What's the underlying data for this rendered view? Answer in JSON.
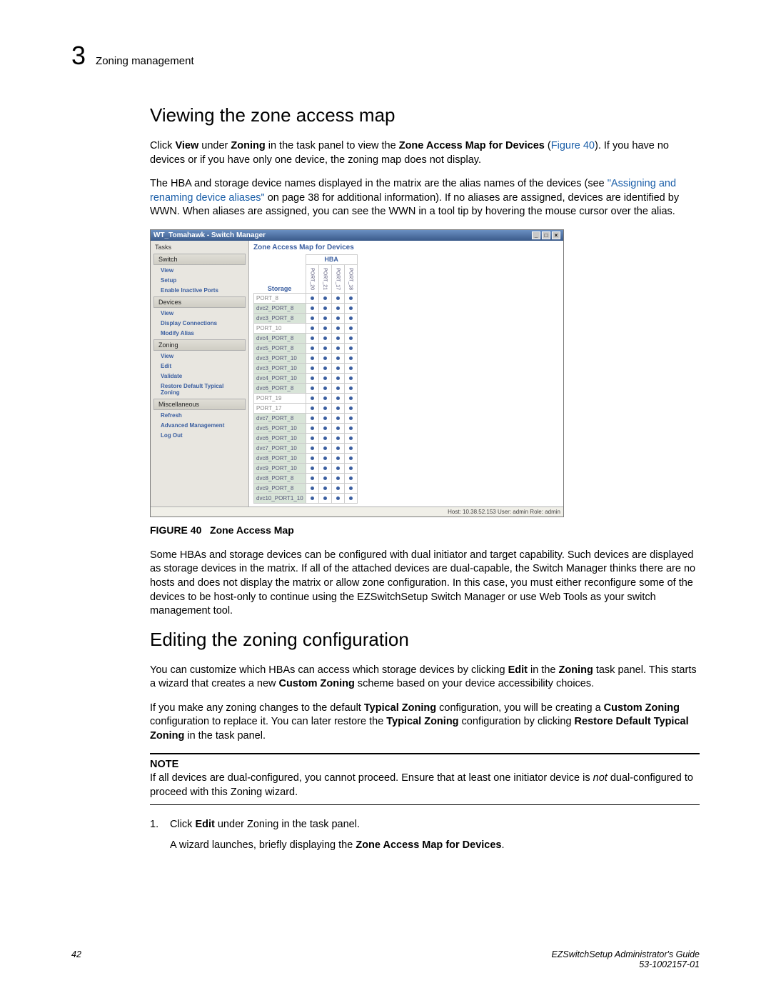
{
  "header": {
    "chapter_number": "3",
    "chapter_title": "Zoning management"
  },
  "section1": {
    "heading": "Viewing the zone access map",
    "p1_a": "Click ",
    "p1_b": "View",
    "p1_c": " under ",
    "p1_d": "Zoning",
    "p1_e": " in the task panel to view the ",
    "p1_f": "Zone Access Map for Devices",
    "p1_g": " (",
    "p1_link": "Figure 40",
    "p1_h": "). If you have no devices or if you have only one device, the zoning map does not display.",
    "p2_a": "The HBA and storage device names displayed in the matrix are the alias names of the devices (see ",
    "p2_link": "\"Assigning and renaming device aliases\"",
    "p2_b": " on page 38 for additional information). If no aliases are assigned, devices are identified by WWN. When aliases are assigned, you can see the WWN in a tool tip by hovering the mouse cursor over the alias."
  },
  "app": {
    "title": "WT_Tomahawk - Switch Manager",
    "tasks_label": "Tasks",
    "groups": {
      "switch": "Switch",
      "devices": "Devices",
      "zoning": "Zoning",
      "misc": "Miscellaneous"
    },
    "switch_links": [
      "View",
      "Setup",
      "Enable Inactive Ports"
    ],
    "devices_links": [
      "View",
      "Display Connections",
      "Modify Alias"
    ],
    "zoning_links": [
      "View",
      "Edit",
      "Validate",
      "Restore Default Typical Zoning"
    ],
    "misc_links": [
      "Refresh",
      "Advanced Management",
      "Log Out"
    ],
    "map_title": "Zone Access Map for Devices",
    "hba_label": "HBA",
    "storage_label": "Storage",
    "col_headers": [
      "PORT_20",
      "PORT_21",
      "PORT_17",
      "PORT_18"
    ],
    "rows": [
      {
        "label": "PORT_8",
        "alt": false
      },
      {
        "label": "dvc2_PORT_8",
        "alt": true
      },
      {
        "label": "dvc3_PORT_8",
        "alt": true
      },
      {
        "label": "PORT_10",
        "alt": false
      },
      {
        "label": "dvc4_PORT_8",
        "alt": true
      },
      {
        "label": "dvc5_PORT_8",
        "alt": true
      },
      {
        "label": "dvc3_PORT_10",
        "alt": true
      },
      {
        "label": "dvc3_PORT_10",
        "alt": true
      },
      {
        "label": "dvc4_PORT_10",
        "alt": true
      },
      {
        "label": "dvc6_PORT_8",
        "alt": true
      },
      {
        "label": "PORT_19",
        "alt": false
      },
      {
        "label": "PORT_17",
        "alt": false
      },
      {
        "label": "dvc7_PORT_8",
        "alt": true
      },
      {
        "label": "dvc5_PORT_10",
        "alt": true
      },
      {
        "label": "dvc6_PORT_10",
        "alt": true
      },
      {
        "label": "dvc7_PORT_10",
        "alt": true
      },
      {
        "label": "dvc8_PORT_10",
        "alt": true
      },
      {
        "label": "dvc9_PORT_10",
        "alt": true
      },
      {
        "label": "dvc8_PORT_8",
        "alt": true
      },
      {
        "label": "dvc9_PORT_8",
        "alt": true
      },
      {
        "label": "dvc10_PORT1_10",
        "alt": true
      }
    ],
    "status": "Host: 10.38.52.153    User: admin    Role: admin"
  },
  "figure": {
    "label": "FIGURE 40",
    "caption": "Zone Access Map"
  },
  "p3": "Some HBAs and storage devices can be configured with dual initiator and target capability. Such devices are displayed as storage devices in the matrix. If all of the attached devices are dual-capable, the Switch Manager thinks there are no hosts and does not display the matrix or allow zone configuration. In this case, you must either reconfigure some of the devices to be host-only to continue using the EZSwitchSetup Switch Manager or use Web Tools as your switch management tool.",
  "section2": {
    "heading": "Editing the zoning configuration",
    "p1_a": "You can customize which HBAs can access which storage devices by clicking ",
    "p1_b": "Edit",
    "p1_c": " in the ",
    "p1_d": "Zoning",
    "p1_e": " task panel. This starts a wizard that creates a new ",
    "p1_f": "Custom Zoning",
    "p1_g": " scheme based on your device accessibility choices.",
    "p2_a": "If you make any zoning changes to the default ",
    "p2_b": "Typical Zoning",
    "p2_c": " configuration, you will be creating a ",
    "p2_d": "Custom Zoning",
    "p2_e": " configuration to replace it. You can later restore the ",
    "p2_f": "Typical Zoning",
    "p2_g": " configuration by clicking ",
    "p2_h": "Restore Default Typical Zoning",
    "p2_i": " in the task panel."
  },
  "note": {
    "title": "NOTE",
    "text_a": "If all devices are dual-configured, you cannot proceed. Ensure that at least one initiator device is ",
    "text_b": "not",
    "text_c": " dual-configured to proceed with this Zoning wizard."
  },
  "steps": {
    "s1_num": "1.",
    "s1_a": "Click ",
    "s1_b": "Edit",
    "s1_c": " under Zoning in the task panel.",
    "s1_d": "A wizard launches, briefly displaying the ",
    "s1_e": "Zone Access Map for Devices",
    "s1_f": "."
  },
  "footer": {
    "page": "42",
    "guide": "EZSwitchSetup Administrator's Guide",
    "docnum": "53-1002157-01"
  }
}
